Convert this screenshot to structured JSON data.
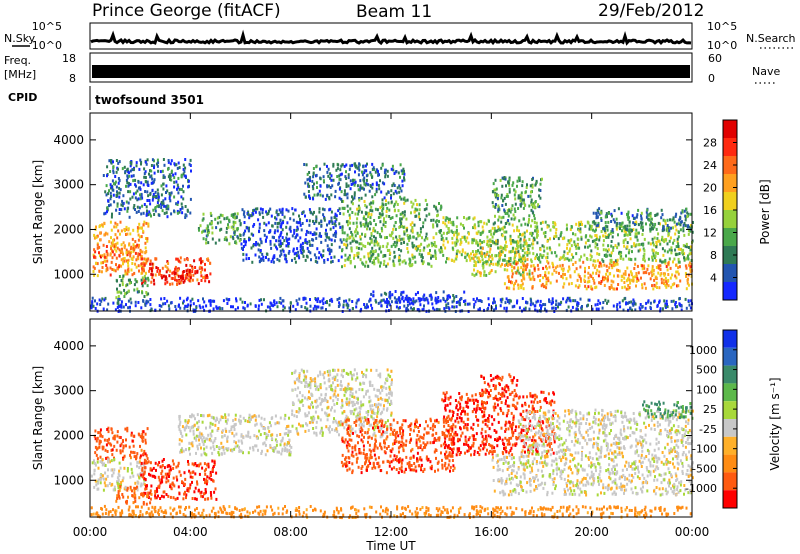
{
  "header": {
    "station": "Prince George (fitACF)",
    "beam": "Beam 11",
    "date": "29/Feb/2012"
  },
  "top_panels": {
    "noise_sky_label": "N.Sky",
    "noise_search_label": "N.Search",
    "noise_ticks": [
      "10^5",
      "10^0"
    ],
    "freq_label_top": "Freq.",
    "freq_label_unit": "[MHz]",
    "freq_ticks": [
      "18",
      "8"
    ],
    "nave_label": "Nave",
    "nave_ticks": [
      "60",
      "0"
    ],
    "cpid_label": "CPID",
    "cpid_value": "twofsound 3501"
  },
  "colors": {
    "power_scale": [
      "#1428ff",
      "#2255b0",
      "#2f7a55",
      "#4aa84a",
      "#96d23c",
      "#f0d01e",
      "#ffa020",
      "#ff6a1a",
      "#ff2a10",
      "#e00000"
    ],
    "velocity_scale": [
      "#1030e8",
      "#2a66c0",
      "#3a8a6a",
      "#5cb84a",
      "#a8d83a",
      "#c8c8c8",
      "#ffb02a",
      "#ff8c14",
      "#ff5a10",
      "#ff0000"
    ],
    "ground_scatter": "#c8c8c8"
  },
  "chart_data": [
    {
      "type": "heatmap",
      "title": "Power",
      "ylabel": "Slant Range [km]",
      "xlabel": "Time UT",
      "x_ticks": [
        "00:00",
        "04:00",
        "08:00",
        "12:00",
        "16:00",
        "20:00",
        "00:00"
      ],
      "xlim_hours": [
        0,
        24
      ],
      "ylim": [
        180,
        4600
      ],
      "y_ticks": [
        1000,
        2000,
        3000,
        4000
      ],
      "colorbar": {
        "label": "Power [dB]",
        "min": 0,
        "max": 32,
        "ticks": [
          4,
          8,
          12,
          16,
          20,
          24,
          28
        ]
      },
      "regions": [
        {
          "t": [
            0.1,
            2.3
          ],
          "r": [
            1000,
            2200
          ],
          "value": 21
        },
        {
          "t": [
            0.1,
            2.0
          ],
          "r": [
            1400,
            1700
          ],
          "value": 24
        },
        {
          "t": [
            2.0,
            4.8
          ],
          "r": [
            800,
            1400
          ],
          "value": 26
        },
        {
          "t": [
            2.4,
            4.0
          ],
          "r": [
            850,
            1150
          ],
          "value": 30
        },
        {
          "t": [
            1.0,
            2.3
          ],
          "r": [
            500,
            1000
          ],
          "value": 11
        },
        {
          "t": [
            4.3,
            6.0
          ],
          "r": [
            1700,
            2400
          ],
          "value": 10
        },
        {
          "t": [
            0.5,
            4.0
          ],
          "r": [
            2300,
            3600
          ],
          "value": 6
        },
        {
          "t": [
            6.0,
            10.0
          ],
          "r": [
            1300,
            2500
          ],
          "value": 4
        },
        {
          "t": [
            8.5,
            12.5
          ],
          "r": [
            2700,
            3500
          ],
          "value": 6
        },
        {
          "t": [
            10.0,
            14.0
          ],
          "r": [
            1200,
            2700
          ],
          "value": 12
        },
        {
          "t": [
            14.0,
            16.0
          ],
          "r": [
            1300,
            2300
          ],
          "value": 14
        },
        {
          "t": [
            15.2,
            17.5
          ],
          "r": [
            1000,
            1800
          ],
          "value": 16
        },
        {
          "t": [
            16.5,
            24.0
          ],
          "r": [
            700,
            1300
          ],
          "value": 21
        },
        {
          "t": [
            16.0,
            24.0
          ],
          "r": [
            1300,
            2200
          ],
          "value": 13
        },
        {
          "t": [
            16.0,
            18.0
          ],
          "r": [
            2200,
            3200
          ],
          "value": 10
        },
        {
          "t": [
            20.0,
            24.0
          ],
          "r": [
            2000,
            2500
          ],
          "value": 8
        },
        {
          "t": [
            0.0,
            24.0
          ],
          "r": [
            200,
            500
          ],
          "value": 3
        },
        {
          "t": [
            11.0,
            15.0
          ],
          "r": [
            400,
            650
          ],
          "value": 2
        }
      ]
    },
    {
      "type": "heatmap",
      "title": "Velocity",
      "ylabel": "Slant Range [km]",
      "xlabel": "Time UT",
      "x_ticks": [
        "00:00",
        "04:00",
        "08:00",
        "12:00",
        "16:00",
        "20:00",
        "00:00"
      ],
      "xlim_hours": [
        0,
        24
      ],
      "ylim": [
        180,
        4600
      ],
      "y_ticks": [
        1000,
        2000,
        3000,
        4000
      ],
      "colorbar": {
        "label": "Velocity [m s⁻¹]",
        "ticks": [
          "1000",
          "500",
          "100",
          "25",
          "-25",
          "-100",
          "-500",
          "-1000"
        ],
        "levels": [
          1000,
          500,
          100,
          25,
          -25,
          -100,
          -500,
          -1000
        ]
      },
      "regions": [
        {
          "t": [
            0.1,
            2.3
          ],
          "r": [
            1500,
            2200
          ],
          "value": -400
        },
        {
          "t": [
            0.0,
            2.2
          ],
          "r": [
            800,
            1500
          ],
          "value": 0
        },
        {
          "t": [
            2.0,
            5.0
          ],
          "r": [
            600,
            1500
          ],
          "value": -500
        },
        {
          "t": [
            1.0,
            2.5
          ],
          "r": [
            500,
            900
          ],
          "value": -300
        },
        {
          "t": [
            3.5,
            8.0
          ],
          "r": [
            1600,
            2500
          ],
          "value": 0
        },
        {
          "t": [
            8.0,
            12.0
          ],
          "r": [
            2000,
            3500
          ],
          "value": 0
        },
        {
          "t": [
            10.0,
            14.5
          ],
          "r": [
            1200,
            2400
          ],
          "value": -400
        },
        {
          "t": [
            14.0,
            18.5
          ],
          "r": [
            1600,
            3000
          ],
          "value": -500
        },
        {
          "t": [
            15.5,
            17.0
          ],
          "r": [
            2900,
            3400
          ],
          "value": -500
        },
        {
          "t": [
            16.0,
            24.0
          ],
          "r": [
            700,
            1600
          ],
          "value": 0
        },
        {
          "t": [
            17.0,
            24.0
          ],
          "r": [
            1600,
            2600
          ],
          "value": 0
        },
        {
          "t": [
            22.0,
            24.0
          ],
          "r": [
            2400,
            2800
          ],
          "value": 300
        },
        {
          "t": [
            0.0,
            24.0
          ],
          "r": [
            200,
            450
          ],
          "value": -150
        }
      ]
    }
  ]
}
